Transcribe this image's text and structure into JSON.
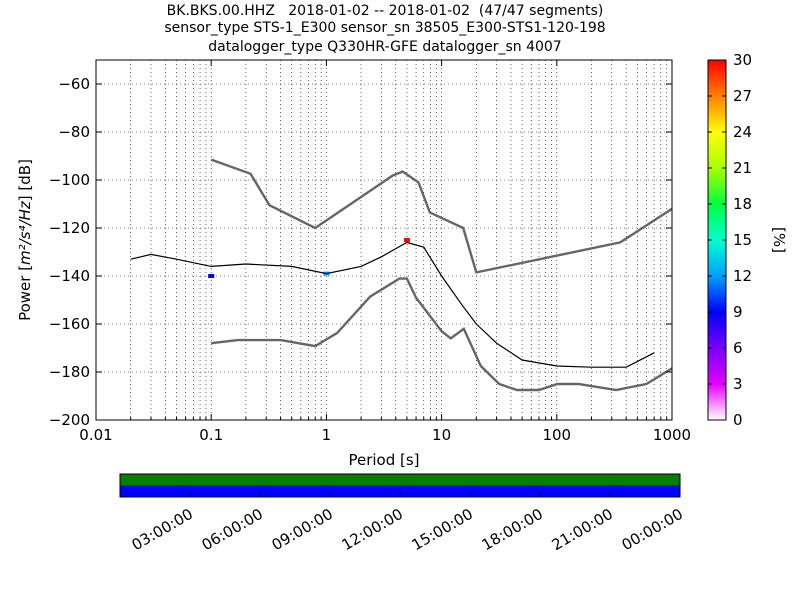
{
  "title": {
    "line1": "BK.BKS.00.HHZ   2018-01-02 -- 2018-01-02  (47/47 segments)",
    "line2": "sensor_type STS-1_E300 sensor_sn 38505_E300-STS1-120-198",
    "line3": "datalogger_type Q330HR-GFE datalogger_sn 4007"
  },
  "chart_data": [
    {
      "type": "heatmap",
      "name": "ppsd",
      "xlabel": "Period [s]",
      "ylabel": "Power [m²/s⁴/Hz] [dB]",
      "ylabel_parts": {
        "prefix": "Power [",
        "math": "m²/s⁴/Hz",
        "suffix": "] [dB]"
      },
      "x_scale": "log",
      "xlim": [
        0.01,
        1000
      ],
      "ylim": [
        -200,
        -50
      ],
      "x_ticks": [
        0.01,
        0.1,
        1,
        10,
        100,
        1000
      ],
      "x_tick_labels": [
        "0.01",
        "0.1",
        "1",
        "10",
        "100",
        "1000"
      ],
      "y_ticks": [
        -200,
        -180,
        -160,
        -140,
        -120,
        -100,
        -80,
        -60
      ],
      "y_tick_labels": [
        "−200",
        "−180",
        "−160",
        "−140",
        "−120",
        "−100",
        "−80",
        "−60"
      ],
      "grid": true,
      "colorbar": {
        "label": "[%]",
        "range": [
          0,
          30
        ],
        "ticks": [
          0,
          3,
          6,
          9,
          12,
          15,
          18,
          21,
          24,
          27,
          30
        ],
        "colormap": [
          "#ffffff",
          "#e400ff",
          "#7a00ff",
          "#0000ff",
          "#00a0ff",
          "#00ffd0",
          "#00ff40",
          "#a8ff00",
          "#ffff00",
          "#ff8000",
          "#ff0000"
        ]
      },
      "series": [
        {
          "name": "New High Noise Model",
          "kind": "line",
          "color": "#666666",
          "x": [
            0.1,
            0.22,
            0.32,
            0.8,
            3.8,
            4.6,
            6.3,
            7.9,
            15.4,
            20,
            354.8,
            1000
          ],
          "y": [
            -91.5,
            -97.4,
            -110.5,
            -120,
            -98,
            -96.5,
            -101,
            -113.5,
            -120,
            -138.5,
            -126,
            -112
          ]
        },
        {
          "name": "New Low Noise Model",
          "kind": "line",
          "color": "#666666",
          "x": [
            0.1,
            0.17,
            0.4,
            0.8,
            1.24,
            2.4,
            4.3,
            5,
            6,
            10,
            12,
            15.6,
            21.9,
            31.6,
            45,
            70,
            101,
            154,
            328,
            600,
            1000
          ],
          "y": [
            -168,
            -166.7,
            -166.7,
            -169.2,
            -163.7,
            -148.6,
            -141.1,
            -141.1,
            -149,
            -163,
            -166,
            -162,
            -177.5,
            -185,
            -187.5,
            -187.5,
            -185,
            -185,
            -187.5,
            -185,
            -178.5
          ]
        },
        {
          "name": "mode",
          "kind": "line",
          "color": "#000000",
          "x": [
            0.02,
            0.03,
            0.05,
            0.1,
            0.2,
            0.5,
            1,
            2,
            3,
            5,
            7,
            10,
            15,
            20,
            30,
            50,
            100,
            200,
            400,
            700
          ],
          "y": [
            -133,
            -131,
            -133,
            -136,
            -135,
            -136,
            -139,
            -136,
            -132,
            -126,
            -128,
            -140,
            -152,
            -160,
            -168,
            -175,
            -177.5,
            -178,
            -178,
            -172
          ]
        }
      ],
      "histogram_cells": [
        {
          "x": 0.1,
          "y": -140,
          "pct": 9
        },
        {
          "x": 1,
          "y": -139,
          "pct": 12
        },
        {
          "x": 5,
          "y": -125,
          "pct": 30
        }
      ]
    },
    {
      "type": "timeline",
      "name": "data availability",
      "xlim": [
        0,
        24
      ],
      "x_unit": "hours",
      "tick_labels": [
        "03:00:00",
        "06:00:00",
        "09:00:00",
        "12:00:00",
        "15:00:00",
        "18:00:00",
        "21:00:00",
        "00:00:00"
      ],
      "tick_values": [
        3,
        6,
        9,
        12,
        15,
        18,
        21,
        24
      ],
      "tracks": [
        {
          "color": "#007f00",
          "start": 0,
          "end": 24
        },
        {
          "color": "#0000ff",
          "start": 0,
          "end": 24
        }
      ]
    }
  ]
}
